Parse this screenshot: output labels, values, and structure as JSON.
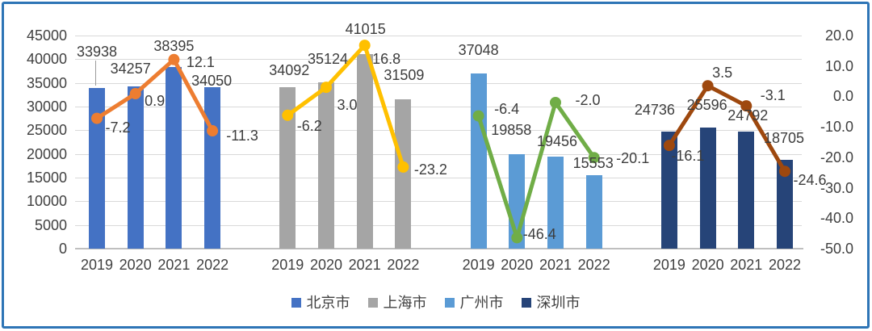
{
  "window": {
    "background": "#FFFFFF",
    "border_color": "#2E75B6"
  },
  "chart_data": {
    "type": "bar+line combo, dual axis",
    "title": "",
    "categories": [
      "2019",
      "2020",
      "2021",
      "2022"
    ],
    "grid": true,
    "left_axis": {
      "min": 0,
      "max": 45000,
      "tick_interval": 5000,
      "tick_labels": [
        "45000",
        "40000",
        "35000",
        "30000",
        "25000",
        "20000",
        "15000",
        "10000",
        "5000",
        "0"
      ],
      "tick_values": [
        45000,
        40000,
        35000,
        30000,
        25000,
        20000,
        15000,
        10000,
        5000,
        0
      ]
    },
    "right_axis": {
      "min": -50,
      "max": 20,
      "tick_interval": 10,
      "tick_labels": [
        "20.0",
        "10.0",
        "0.0",
        "-10.0",
        "-20.0",
        "-30.0",
        "-40.0",
        "-50.0"
      ],
      "tick_values": [
        20,
        10,
        0,
        -10,
        -20,
        -30,
        -40,
        -50
      ]
    },
    "legend": {
      "position": "bottom",
      "items": [
        {
          "label": "北京市",
          "color": "#4472C4"
        },
        {
          "label": "上海市",
          "color": "#A5A5A5"
        },
        {
          "label": "广州市",
          "color": "#5B9BD5"
        },
        {
          "label": "深圳市",
          "color": "#264478"
        }
      ]
    },
    "series": [
      {
        "key": "beijing",
        "city": "北京市",
        "bar_color": "#4472C4",
        "line_color": "#ED7D31",
        "bar_values": [
          33938,
          34257,
          38395,
          34050
        ],
        "bar_value_labels": [
          "33938",
          "34257",
          "38395",
          "34050"
        ],
        "bar_label_offsets": [
          [
            0,
            -34
          ],
          [
            -6,
            -11
          ],
          [
            0,
            -15
          ],
          [
            -1,
            3
          ]
        ],
        "line_values": [
          -7.2,
          0.9,
          12.1,
          -11.3
        ],
        "line_value_labels": [
          "-7.2",
          "0.9",
          "12.1",
          "-11.3"
        ],
        "line_label_offsets": [
          [
            26,
            11
          ],
          [
            24,
            9
          ],
          [
            33,
            3
          ],
          [
            37,
            6
          ]
        ]
      },
      {
        "key": "shanghai",
        "city": "上海市",
        "bar_color": "#A5A5A5",
        "line_color": "#FFC000",
        "bar_values": [
          34092,
          35124,
          41015,
          31509
        ],
        "bar_value_labels": [
          "34092",
          "35124",
          "41015",
          "31509"
        ],
        "bar_label_offsets": [
          [
            2,
            -10
          ],
          [
            2,
            -18
          ],
          [
            1,
            -20
          ],
          [
            1,
            -19
          ]
        ],
        "line_values": [
          -6.2,
          3.0,
          16.8,
          -23.2
        ],
        "line_value_labels": [
          "-6.2",
          "3.0",
          "16.8",
          "-23.2"
        ],
        "line_label_offsets": [
          [
            27,
            13
          ],
          [
            26,
            22
          ],
          [
            27,
            17
          ],
          [
            34,
            3
          ]
        ]
      },
      {
        "key": "guangzhou",
        "city": "广州市",
        "bar_color": "#5B9BD5",
        "line_color": "#70AD47",
        "bar_values": [
          37048,
          19858,
          19456,
          15553
        ],
        "bar_value_labels": [
          "37048",
          "19858",
          "19456",
          "15553"
        ],
        "bar_label_offsets": [
          [
            0,
            -18
          ],
          [
            -7,
            -19
          ],
          [
            2,
            -8
          ],
          [
            -1,
            -4
          ]
        ],
        "line_values": [
          -6.4,
          -46.4,
          -2.0,
          -20.1
        ],
        "line_value_labels": [
          "-6.4",
          "-46.4",
          "-2.0",
          "-20.1"
        ],
        "line_label_offsets": [
          [
            35,
            -9
          ],
          [
            28,
            -4
          ],
          [
            40,
            -3
          ],
          [
            48,
            1
          ]
        ]
      },
      {
        "key": "shenzhen",
        "city": "深圳市",
        "bar_color": "#264478",
        "line_color": "#9E480E",
        "bar_values": [
          24736,
          25596,
          24792,
          18705
        ],
        "bar_value_labels": [
          "24736",
          "25596",
          "24792",
          "18705"
        ],
        "bar_label_offsets": [
          [
            -18,
            -16
          ],
          [
            -1,
            -17
          ],
          [
            2,
            -9
          ],
          [
            -1,
            -16
          ]
        ],
        "line_values": [
          -16.1,
          3.5,
          -3.1,
          -24.6
        ],
        "line_value_labels": [
          "-16.1",
          "3.5",
          "-3.1",
          "-24.6"
        ],
        "line_label_offsets": [
          [
            23,
            13
          ],
          [
            18,
            -16
          ],
          [
            33,
            -13
          ],
          [
            31,
            11
          ]
        ]
      }
    ]
  }
}
